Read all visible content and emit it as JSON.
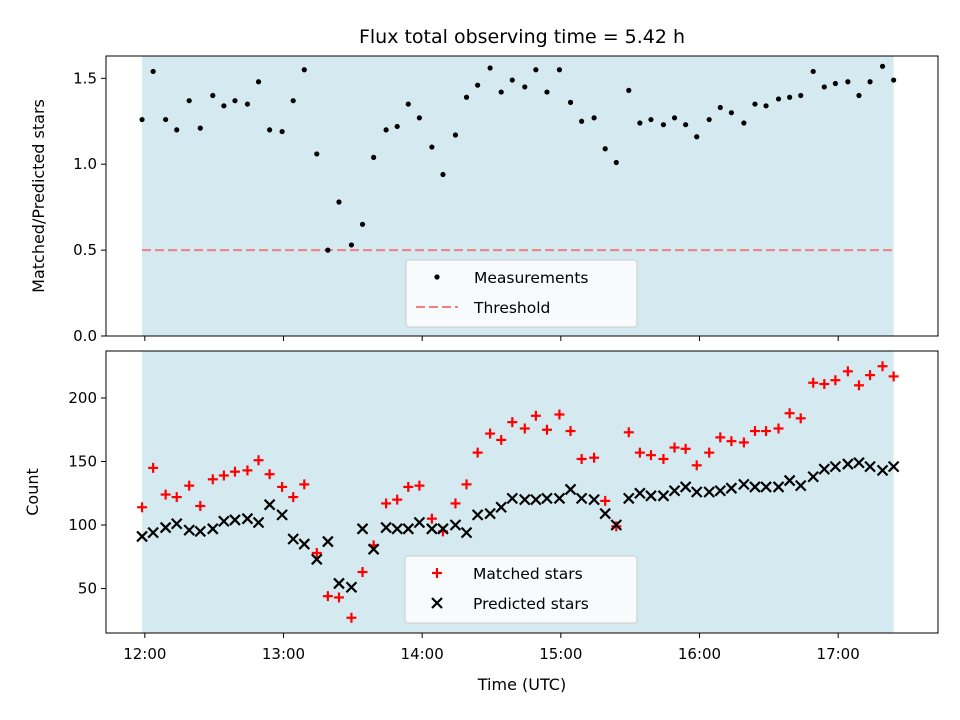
{
  "chart_data": [
    {
      "type": "scatter",
      "title": "Flux total observing time = 5.42 h",
      "xlabel": "",
      "ylabel": "Matched/Predicted stars",
      "ylim": [
        0,
        1.63
      ],
      "xlim": [
        11.72,
        17.72
      ],
      "yticks": [
        "0.0",
        "0.5",
        "1.0",
        "1.5"
      ],
      "ytick_values": [
        0,
        0.5,
        1.0,
        1.5
      ],
      "shaded_span": [
        11.98,
        17.4
      ],
      "colors": {
        "shade": "#d4eaf0",
        "points": "#000000",
        "threshold": "#f08080"
      },
      "legend": {
        "placement": "lower-center",
        "entries": [
          "Measurements",
          "Threshold"
        ]
      },
      "threshold": 0.5,
      "series": [
        {
          "name": "Measurements",
          "x": [
            11.98,
            12.06,
            12.15,
            12.23,
            12.32,
            12.4,
            12.49,
            12.57,
            12.65,
            12.74,
            12.82,
            12.9,
            12.99,
            13.07,
            13.15,
            13.24,
            13.32,
            13.4,
            13.49,
            13.57,
            13.65,
            13.74,
            13.82,
            13.9,
            13.98,
            14.07,
            14.15,
            14.24,
            14.32,
            14.4,
            14.49,
            14.57,
            14.65,
            14.74,
            14.82,
            14.9,
            14.99,
            15.07,
            15.15,
            15.24,
            15.32,
            15.4,
            15.49,
            15.57,
            15.65,
            15.74,
            15.82,
            15.9,
            15.98,
            16.07,
            16.15,
            16.23,
            16.32,
            16.4,
            16.48,
            16.57,
            16.65,
            16.73,
            16.82,
            16.9,
            16.98,
            17.07,
            17.15,
            17.23,
            17.32,
            17.4
          ],
          "y": [
            1.26,
            1.54,
            1.26,
            1.2,
            1.37,
            1.21,
            1.4,
            1.34,
            1.37,
            1.35,
            1.48,
            1.2,
            1.19,
            1.37,
            1.55,
            1.06,
            0.5,
            0.78,
            0.53,
            0.65,
            1.04,
            1.2,
            1.22,
            1.35,
            1.27,
            1.1,
            0.94,
            1.17,
            1.39,
            1.46,
            1.56,
            1.42,
            1.49,
            1.45,
            1.55,
            1.42,
            1.55,
            1.36,
            1.25,
            1.27,
            1.09,
            1.01,
            1.43,
            1.24,
            1.26,
            1.23,
            1.27,
            1.23,
            1.16,
            1.26,
            1.33,
            1.3,
            1.24,
            1.35,
            1.34,
            1.38,
            1.39,
            1.4,
            1.54,
            1.45,
            1.47,
            1.48,
            1.4,
            1.48,
            1.57,
            1.49
          ]
        }
      ]
    },
    {
      "type": "scatter",
      "title": "",
      "xlabel": "Time (UTC)",
      "ylabel": "Count",
      "ylim": [
        15,
        237
      ],
      "xlim": [
        11.72,
        17.72
      ],
      "yticks": [
        "50",
        "100",
        "150",
        "200"
      ],
      "ytick_values": [
        50,
        100,
        150,
        200
      ],
      "xticks": [
        "12:00",
        "13:00",
        "14:00",
        "15:00",
        "16:00",
        "17:00"
      ],
      "xtick_values": [
        12,
        13,
        14,
        15,
        16,
        17
      ],
      "shaded_span": [
        11.98,
        17.4
      ],
      "colors": {
        "shade": "#d4eaf0",
        "matched": "#ff0000",
        "predicted": "#000000"
      },
      "legend": {
        "placement": "lower-center",
        "entries": [
          "Matched stars",
          "Predicted stars"
        ]
      },
      "series": [
        {
          "name": "Matched stars",
          "marker": "plus",
          "x": [
            11.98,
            12.06,
            12.15,
            12.23,
            12.32,
            12.4,
            12.49,
            12.57,
            12.65,
            12.74,
            12.82,
            12.9,
            12.99,
            13.07,
            13.15,
            13.24,
            13.32,
            13.4,
            13.49,
            13.57,
            13.65,
            13.74,
            13.82,
            13.9,
            13.98,
            14.07,
            14.15,
            14.24,
            14.32,
            14.4,
            14.49,
            14.57,
            14.65,
            14.74,
            14.82,
            14.9,
            14.99,
            15.07,
            15.15,
            15.24,
            15.32,
            15.4,
            15.49,
            15.57,
            15.65,
            15.74,
            15.82,
            15.9,
            15.98,
            16.07,
            16.15,
            16.23,
            16.32,
            16.4,
            16.48,
            16.57,
            16.65,
            16.73,
            16.82,
            16.9,
            16.98,
            17.07,
            17.15,
            17.23,
            17.32,
            17.4
          ],
          "y": [
            114,
            145,
            124,
            122,
            131,
            115,
            136,
            139,
            142,
            143,
            151,
            140,
            130,
            122,
            132,
            78,
            44,
            43,
            27,
            63,
            84,
            117,
            120,
            130,
            131,
            105,
            95,
            117,
            132,
            157,
            172,
            167,
            181,
            176,
            186,
            175,
            187,
            174,
            152,
            153,
            119,
            99,
            173,
            157,
            155,
            152,
            161,
            160,
            147,
            157,
            169,
            166,
            165,
            174,
            174,
            176,
            188,
            184,
            212,
            211,
            214,
            221,
            210,
            218,
            225,
            217
          ]
        },
        {
          "name": "Predicted stars",
          "marker": "x",
          "x": [
            11.98,
            12.06,
            12.15,
            12.23,
            12.32,
            12.4,
            12.49,
            12.57,
            12.65,
            12.74,
            12.82,
            12.9,
            12.99,
            13.07,
            13.15,
            13.24,
            13.32,
            13.4,
            13.49,
            13.57,
            13.65,
            13.74,
            13.82,
            13.9,
            13.98,
            14.07,
            14.15,
            14.24,
            14.32,
            14.4,
            14.49,
            14.57,
            14.65,
            14.74,
            14.82,
            14.9,
            14.99,
            15.07,
            15.15,
            15.24,
            15.32,
            15.4,
            15.49,
            15.57,
            15.65,
            15.74,
            15.82,
            15.9,
            15.98,
            16.07,
            16.15,
            16.23,
            16.32,
            16.4,
            16.48,
            16.57,
            16.65,
            16.73,
            16.82,
            16.9,
            16.98,
            17.07,
            17.15,
            17.23,
            17.32,
            17.4
          ],
          "y": [
            91,
            94,
            98,
            101,
            96,
            95,
            97,
            103,
            104,
            105,
            102,
            116,
            108,
            89,
            85,
            73,
            87,
            54,
            51,
            97,
            81,
            98,
            97,
            97,
            102,
            97,
            97,
            100,
            94,
            108,
            109,
            114,
            121,
            120,
            120,
            121,
            121,
            128,
            121,
            120,
            109,
            100,
            121,
            125,
            123,
            123,
            127,
            130,
            126,
            126,
            127,
            129,
            132,
            130,
            130,
            130,
            135,
            131,
            138,
            144,
            146,
            148,
            149,
            146,
            143,
            146
          ]
        }
      ]
    }
  ]
}
